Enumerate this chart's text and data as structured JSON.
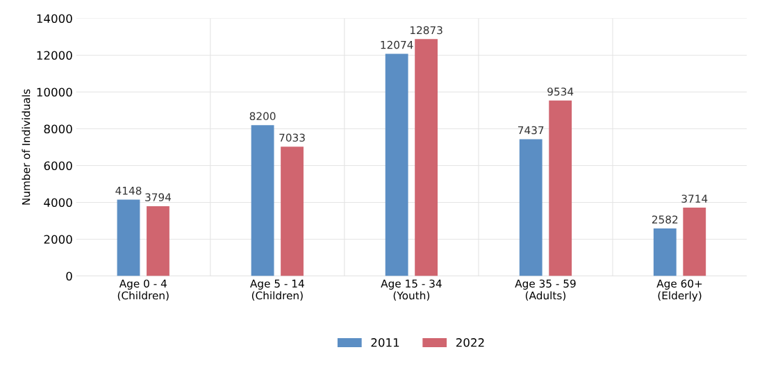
{
  "chart_data": {
    "type": "bar",
    "ylabel": "Number of Individuals",
    "categories": [
      "Age 0 - 4\n(Children)",
      "Age 5 - 14\n(Children)",
      "Age 15 - 34\n(Youth)",
      "Age 35 - 59\n(Adults)",
      "Age 60+\n(Elderly)"
    ],
    "series": [
      {
        "name": "2011",
        "color": "#5b8ec4",
        "values": [
          4148,
          8200,
          12074,
          7437,
          2582
        ]
      },
      {
        "name": "2022",
        "color": "#d0656f",
        "values": [
          3794,
          7033,
          12873,
          9534,
          3714
        ]
      }
    ],
    "ylim": [
      0,
      14000
    ],
    "yticks": [
      0,
      2000,
      4000,
      6000,
      8000,
      10000,
      12000,
      14000
    ],
    "grid": true,
    "legend": "bottom",
    "data_labels": true
  }
}
